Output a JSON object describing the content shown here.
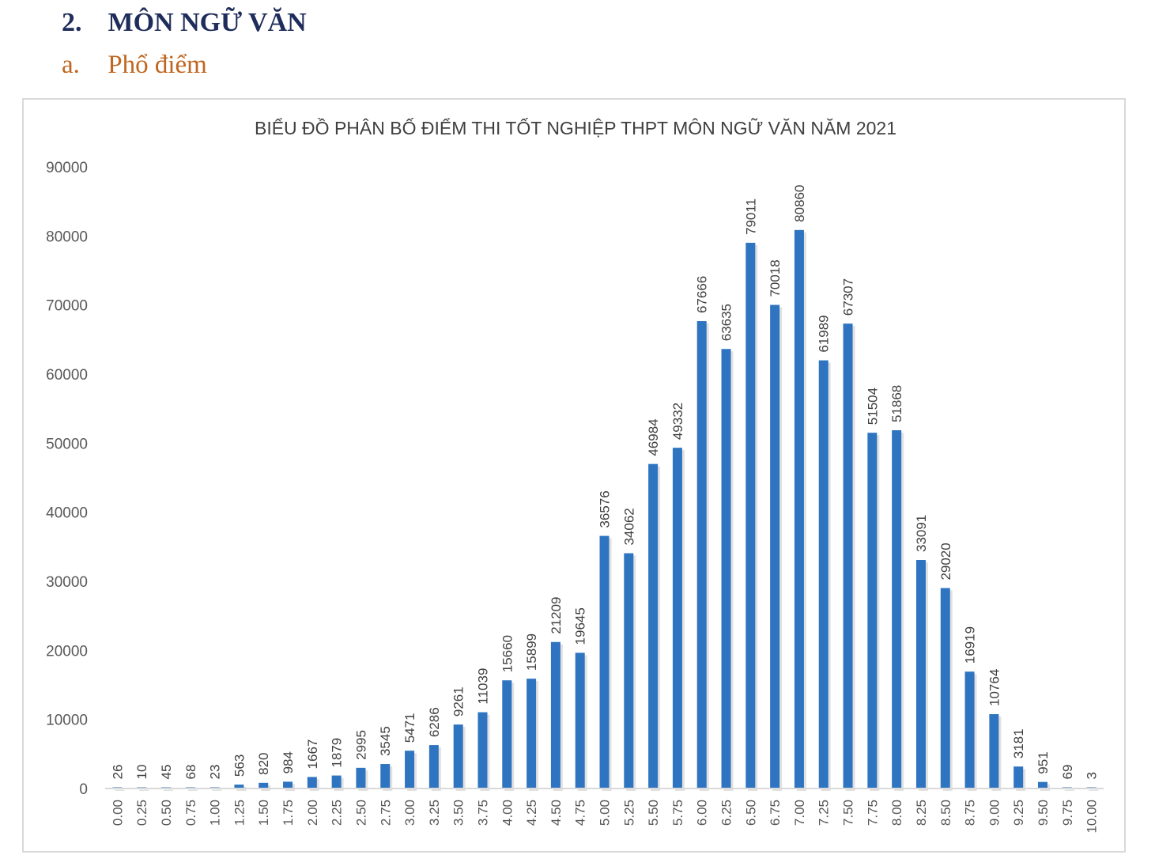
{
  "heading": {
    "number": "2.",
    "title": "MÔN NGỮ VĂN"
  },
  "subheading": {
    "letter": "a.",
    "title": "Phổ điểm"
  },
  "chart_data": {
    "type": "bar",
    "title": "BIỂU ĐỒ PHÂN BỐ ĐIỂM THI TỐT NGHIỆP THPT MÔN NGỮ VĂN NĂM 2021",
    "xlabel": "",
    "ylabel": "",
    "ylim": [
      0,
      90000
    ],
    "yticks": [
      "0",
      "10000",
      "20000",
      "30000",
      "40000",
      "50000",
      "60000",
      "70000",
      "80000",
      "90000"
    ],
    "grid": false,
    "bar_color": "#2e74c0",
    "categories": [
      "0.00",
      "0.25",
      "0.50",
      "0.75",
      "1.00",
      "1.25",
      "1.50",
      "1.75",
      "2.00",
      "2.25",
      "2.50",
      "2.75",
      "3.00",
      "3.25",
      "3.50",
      "3.75",
      "4.00",
      "4.25",
      "4.50",
      "4.75",
      "5.00",
      "5.25",
      "5.50",
      "5.75",
      "6.00",
      "6.25",
      "6.50",
      "6.75",
      "7.00",
      "7.25",
      "7.50",
      "7.75",
      "8.00",
      "8.25",
      "8.50",
      "8.75",
      "9.00",
      "9.25",
      "9.50",
      "9.75",
      "10.00"
    ],
    "values": [
      26,
      10,
      45,
      68,
      23,
      563,
      820,
      984,
      1667,
      1879,
      2995,
      3545,
      5471,
      6286,
      9261,
      11039,
      15660,
      15899,
      21209,
      19645,
      36576,
      34062,
      46984,
      49332,
      67666,
      63635,
      79011,
      70018,
      80860,
      61989,
      67307,
      51504,
      51868,
      33091,
      29020,
      16919,
      10764,
      3181,
      951,
      69,
      3
    ]
  }
}
